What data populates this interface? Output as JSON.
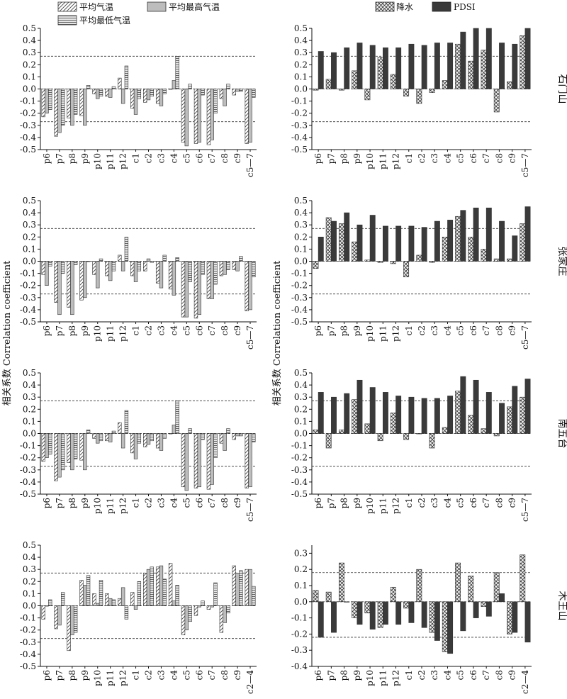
{
  "legends": {
    "left": [
      "平均气温",
      "平均最高气温",
      "平均最低气温"
    ],
    "right": [
      "降水",
      "PDSI"
    ]
  },
  "ylabel_left": "相关系数 Correlation coefficient",
  "ylabel_right": "相关系数 Correlation coefficient",
  "colors": {
    "mean_temp_hatch": "#555555",
    "mean_max_temp": "#bdbdbd",
    "mean_min_temp_hatch": "#555555",
    "precip_crosshatch": "#333333",
    "pdsi": "#3a3a3a"
  },
  "chart_data": [
    {
      "type": "bar",
      "site": "石门山",
      "panel": "temperature",
      "categories": [
        "p6",
        "p7",
        "p8",
        "p9",
        "p10",
        "p11",
        "p12",
        "c1",
        "c2",
        "c3",
        "c4",
        "c5",
        "c6",
        "c7",
        "c8",
        "c9",
        "c5—7"
      ],
      "tick_labels": [
        "p6",
        "p7",
        "p8",
        "p9",
        "p10",
        "p11",
        "p12",
        "c1",
        "c2",
        "c3",
        "c4",
        "c5",
        "c6",
        "c7",
        "c8",
        "c9",
        "c5—7"
      ],
      "ylim": [
        -0.5,
        0.5
      ],
      "y_ticks": [
        "0.5",
        "0.4",
        "0.3",
        "0.2",
        "0.1",
        "0.0",
        "-0.1",
        "-0.2",
        "-0.3",
        "-0.4",
        "-0.5"
      ],
      "threshold_lines": [
        0.27,
        -0.27
      ],
      "series": [
        {
          "name": "平均气温",
          "values": [
            -0.23,
            -0.39,
            -0.24,
            -0.22,
            -0.04,
            -0.06,
            0.09,
            -0.16,
            -0.11,
            -0.12,
            0.0,
            -0.44,
            -0.45,
            -0.46,
            -0.08,
            -0.05,
            -0.45
          ]
        },
        {
          "name": "平均最高气温",
          "values": [
            -0.2,
            -0.36,
            -0.3,
            -0.3,
            -0.08,
            -0.07,
            -0.12,
            -0.21,
            -0.09,
            -0.14,
            0.07,
            -0.47,
            -0.44,
            -0.42,
            -0.14,
            -0.02,
            -0.44
          ]
        },
        {
          "name": "平均最低气温",
          "values": [
            -0.17,
            -0.3,
            -0.21,
            0.03,
            -0.06,
            0.02,
            0.19,
            -0.08,
            -0.06,
            -0.04,
            0.27,
            0.04,
            -0.05,
            -0.2,
            0.04,
            -0.02,
            -0.07
          ]
        }
      ]
    },
    {
      "type": "bar",
      "site": "石门山",
      "panel": "precipitation-pdsi",
      "categories": [
        "p6",
        "p7",
        "p8",
        "p9",
        "p10",
        "p11",
        "p12",
        "c1",
        "c2",
        "c3",
        "c4",
        "c5",
        "c6",
        "c7",
        "c8",
        "c9",
        "c5—7"
      ],
      "tick_labels": [
        "p6",
        "p7",
        "p8",
        "p9",
        "p10",
        "p11",
        "p12",
        "c1",
        "c2",
        "c3",
        "c4",
        "c5",
        "c6",
        "c7",
        "c8",
        "c9",
        "c5—7"
      ],
      "ylim": [
        -0.5,
        0.5
      ],
      "y_ticks": [
        "0.5",
        "0.4",
        "0.3",
        "0.2",
        "0.1",
        "0.0",
        "-0.1",
        "-0.2",
        "-0.3",
        "-0.4",
        "-0.5"
      ],
      "threshold_lines": [
        0.27,
        -0.27
      ],
      "series": [
        {
          "name": "降水",
          "values": [
            -0.01,
            0.08,
            -0.01,
            0.15,
            -0.09,
            0.26,
            0.12,
            -0.06,
            -0.12,
            -0.03,
            0.07,
            0.37,
            0.23,
            0.32,
            -0.19,
            0.06,
            0.44
          ]
        },
        {
          "name": "PDSI",
          "values": [
            0.31,
            0.3,
            0.34,
            0.38,
            0.36,
            0.34,
            0.34,
            0.37,
            0.36,
            0.38,
            0.38,
            0.47,
            0.5,
            0.5,
            0.38,
            0.37,
            0.5
          ]
        }
      ]
    },
    {
      "type": "bar",
      "site": "张家庄",
      "panel": "temperature",
      "categories": [
        "p6",
        "p7",
        "p8",
        "p9",
        "p10",
        "p11",
        "p12",
        "c1",
        "c2",
        "c3",
        "c4",
        "c5",
        "c6",
        "c7",
        "c8",
        "c9",
        "c5—7"
      ],
      "tick_labels": [
        "p6",
        "p7",
        "p8",
        "p9",
        "p10",
        "p11",
        "p12",
        "c1",
        "c2",
        "c3",
        "c4",
        "c5",
        "c6",
        "c7",
        "c8",
        "c9",
        "c5—7"
      ],
      "ylim": [
        -0.5,
        0.5
      ],
      "y_ticks": [
        "0.5",
        "0.4",
        "0.3",
        "0.2",
        "0.1",
        "0.0",
        "-0.1",
        "-0.2",
        "-0.3",
        "-0.4",
        "-0.5"
      ],
      "threshold_lines": [
        0.27,
        -0.27
      ],
      "series": [
        {
          "name": "平均气温",
          "values": [
            -0.11,
            -0.34,
            -0.38,
            -0.32,
            -0.11,
            -0.12,
            0.05,
            -0.12,
            -0.08,
            -0.18,
            -0.23,
            -0.46,
            -0.47,
            -0.31,
            -0.12,
            -0.07,
            -0.41
          ]
        },
        {
          "name": "平均最高气温",
          "values": [
            -0.2,
            -0.44,
            -0.44,
            -0.3,
            -0.22,
            -0.16,
            -0.08,
            -0.17,
            0.02,
            -0.22,
            -0.28,
            -0.46,
            -0.44,
            -0.31,
            -0.11,
            -0.08,
            -0.4
          ]
        },
        {
          "name": "平均最低气温",
          "values": [
            -0.04,
            -0.1,
            -0.03,
            0.0,
            0.02,
            -0.08,
            0.2,
            -0.08,
            -0.01,
            0.05,
            0.03,
            -0.17,
            -0.11,
            -0.19,
            -0.07,
            0.04,
            -0.13
          ]
        }
      ]
    },
    {
      "type": "bar",
      "site": "张家庄",
      "panel": "precipitation-pdsi",
      "categories": [
        "p6",
        "p7",
        "p8",
        "p9",
        "p10",
        "p11",
        "p12",
        "c1",
        "c2",
        "c3",
        "c4",
        "c5",
        "c6",
        "c7",
        "c8",
        "c9",
        "c5—7"
      ],
      "tick_labels": [
        "p6",
        "p7",
        "p8",
        "p9",
        "p10",
        "p11",
        "p12",
        "c1",
        "c2",
        "c3",
        "c4",
        "c5",
        "c6",
        "c7",
        "c8",
        "c9",
        "c5—7"
      ],
      "ylim": [
        -0.5,
        0.5
      ],
      "y_ticks": [
        "0.5",
        "0.4",
        "0.3",
        "0.2",
        "0.1",
        "0.0",
        "-0.1",
        "-0.2",
        "-0.3",
        "-0.4",
        "-0.5"
      ],
      "threshold_lines": [
        0.27,
        -0.27
      ],
      "series": [
        {
          "name": "降水",
          "values": [
            -0.06,
            0.36,
            0.31,
            0.16,
            0.01,
            -0.01,
            -0.02,
            -0.13,
            0.05,
            -0.01,
            0.2,
            0.37,
            0.2,
            0.1,
            0.02,
            0.02,
            0.31
          ]
        },
        {
          "name": "PDSI",
          "values": [
            0.2,
            0.33,
            0.4,
            0.3,
            0.38,
            0.29,
            0.29,
            0.29,
            0.28,
            0.33,
            0.34,
            0.42,
            0.44,
            0.44,
            0.33,
            0.21,
            0.45
          ]
        }
      ]
    },
    {
      "type": "bar",
      "site": "南五台",
      "panel": "temperature",
      "categories": [
        "p6",
        "p7",
        "p8",
        "p9",
        "p10",
        "p11",
        "p12",
        "c1",
        "c2",
        "c3",
        "c4",
        "c5",
        "c6",
        "c7",
        "c8",
        "c9",
        "c5—7"
      ],
      "tick_labels": [
        "p6",
        "p7",
        "p8",
        "p9",
        "p10",
        "p11",
        "p12",
        "c1",
        "c2",
        "c3",
        "c4",
        "c5",
        "c6",
        "c7",
        "c8",
        "c9",
        "c5—7"
      ],
      "ylim": [
        -0.5,
        0.5
      ],
      "y_ticks": [
        "0.5",
        "0.4",
        "0.3",
        "0.2",
        "0.1",
        "0.0",
        "-0.1",
        "-0.2",
        "-0.3",
        "-0.4",
        "-0.5"
      ],
      "threshold_lines": [
        0.27,
        -0.27
      ],
      "series": [
        {
          "name": "平均气温",
          "values": [
            -0.23,
            -0.39,
            -0.24,
            -0.22,
            -0.04,
            -0.06,
            0.09,
            -0.16,
            -0.11,
            -0.12,
            0.0,
            -0.44,
            -0.45,
            -0.46,
            -0.08,
            -0.05,
            -0.45
          ]
        },
        {
          "name": "平均最高气温",
          "values": [
            -0.2,
            -0.36,
            -0.3,
            -0.3,
            -0.08,
            -0.07,
            -0.12,
            -0.21,
            -0.09,
            -0.14,
            0.07,
            -0.47,
            -0.44,
            -0.42,
            -0.14,
            -0.02,
            -0.44
          ]
        },
        {
          "name": "平均最低气温",
          "values": [
            -0.17,
            -0.3,
            -0.21,
            0.03,
            -0.06,
            0.02,
            0.19,
            -0.08,
            -0.06,
            -0.04,
            0.27,
            0.04,
            -0.05,
            -0.2,
            0.04,
            -0.02,
            -0.07
          ]
        }
      ]
    },
    {
      "type": "bar",
      "site": "南五台",
      "panel": "precipitation-pdsi",
      "categories": [
        "p6",
        "p7",
        "p8",
        "p9",
        "p10",
        "p11",
        "p12",
        "c1",
        "c2",
        "c3",
        "c4",
        "c5",
        "c6",
        "c7",
        "c8",
        "c9",
        "c5—7"
      ],
      "tick_labels": [
        "p6",
        "p7",
        "p8",
        "p9",
        "p10",
        "p11",
        "p12",
        "c1",
        "c2",
        "c3",
        "c4",
        "c5",
        "c6",
        "c7",
        "c8",
        "c9",
        "c5—7"
      ],
      "ylim": [
        -0.5,
        0.5
      ],
      "y_ticks": [
        "0.5",
        "0.4",
        "0.3",
        "0.2",
        "0.1",
        "0.0",
        "-0.1",
        "-0.2",
        "-0.3",
        "-0.4",
        "-0.5"
      ],
      "threshold_lines": [
        0.27,
        -0.27
      ],
      "series": [
        {
          "name": "降水",
          "values": [
            0.03,
            -0.12,
            0.03,
            0.28,
            0.08,
            -0.06,
            0.17,
            -0.05,
            0.0,
            -0.12,
            0.05,
            0.35,
            0.15,
            0.04,
            -0.02,
            0.22,
            0.3
          ]
        },
        {
          "name": "PDSI",
          "values": [
            0.34,
            0.3,
            0.33,
            0.44,
            0.38,
            0.34,
            0.31,
            0.3,
            0.29,
            0.29,
            0.31,
            0.47,
            0.44,
            0.34,
            0.25,
            0.39,
            0.45
          ]
        }
      ]
    },
    {
      "type": "bar",
      "site": "木王山",
      "panel": "temperature",
      "categories": [
        "p6",
        "p7",
        "p8",
        "p9",
        "p10",
        "p11",
        "p12",
        "c1",
        "c2",
        "c3",
        "c4",
        "c5",
        "c6",
        "c7",
        "c8",
        "c9",
        "c2—4"
      ],
      "tick_labels": [
        "p6",
        "p7",
        "p8",
        "p9",
        "p10",
        "p11",
        "p12",
        "c1",
        "c2",
        "c3",
        "c4",
        "c5",
        "c6",
        "c7",
        "c8",
        "c9",
        "c2—4"
      ],
      "ylim": [
        -0.5,
        0.5
      ],
      "y_ticks": [
        "0.5",
        "0.4",
        "0.3",
        "0.2",
        "0.1",
        "0.0",
        "-0.1",
        "-0.2",
        "-0.3",
        "-0.4",
        "-0.5"
      ],
      "threshold_lines": [
        0.27,
        -0.27
      ],
      "series": [
        {
          "name": "平均气温",
          "values": [
            -0.11,
            -0.19,
            -0.37,
            0.21,
            0.1,
            0.1,
            0.06,
            0.11,
            0.27,
            0.32,
            0.35,
            -0.24,
            -0.08,
            -0.03,
            -0.22,
            0.33,
            0.3
          ]
        },
        {
          "name": "平均最高气温",
          "values": [
            0.0,
            -0.16,
            -0.24,
            0.17,
            0.02,
            0.06,
            0.15,
            -0.03,
            0.3,
            0.33,
            0.04,
            -0.2,
            -0.01,
            -0.01,
            -0.14,
            0.27,
            0.3
          ]
        },
        {
          "name": "平均最低气温",
          "values": [
            0.05,
            0.11,
            -0.22,
            0.25,
            0.21,
            0.05,
            -0.11,
            0.2,
            0.32,
            0.22,
            0.17,
            -0.13,
            0.04,
            0.19,
            -0.06,
            0.29,
            0.16
          ]
        }
      ]
    },
    {
      "type": "bar",
      "site": "木王山",
      "panel": "precipitation-pdsi",
      "categories": [
        "p6",
        "p7",
        "p8",
        "p9",
        "p10",
        "p11",
        "p12",
        "c1",
        "c2",
        "c3",
        "c4",
        "c5",
        "c6",
        "c7",
        "c8",
        "c9",
        "c2—4"
      ],
      "tick_labels": [
        "p6",
        "p7",
        "p8",
        "p9",
        "p10",
        "p11",
        "p12",
        "c1",
        "c2",
        "c3",
        "c4",
        "c5",
        "c6",
        "c7",
        "c8",
        "c9",
        "c2—4"
      ],
      "ylim": [
        -0.4,
        0.35
      ],
      "y_ticks": [
        "0.3",
        "0.2",
        "0.1",
        "0.0",
        "-0.1",
        "-0.2",
        "-0.3",
        "-0.4"
      ],
      "threshold_lines": [
        0.18,
        -0.22
      ],
      "series": [
        {
          "name": "降水",
          "values": [
            0.07,
            0.06,
            0.24,
            -0.1,
            -0.07,
            -0.16,
            0.09,
            -0.04,
            0.2,
            -0.19,
            -0.31,
            0.24,
            0.16,
            -0.03,
            0.18,
            -0.2,
            0.29
          ]
        },
        {
          "name": "PDSI",
          "values": [
            -0.22,
            -0.19,
            0.0,
            -0.14,
            -0.17,
            -0.14,
            -0.14,
            -0.13,
            -0.16,
            -0.24,
            -0.32,
            -0.18,
            -0.1,
            -0.09,
            0.05,
            -0.19,
            -0.25
          ]
        }
      ]
    }
  ]
}
